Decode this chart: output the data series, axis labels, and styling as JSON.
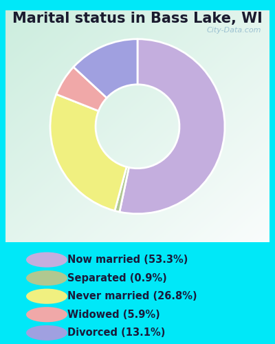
{
  "title": "Marital status in Bass Lake, WI",
  "slices": [
    {
      "label": "Now married (53.3%)",
      "value": 53.3,
      "color": "#c4aede"
    },
    {
      "label": "Separated (0.9%)",
      "value": 0.9,
      "color": "#b0c890"
    },
    {
      "label": "Never married (26.8%)",
      "value": 26.8,
      "color": "#f0f080"
    },
    {
      "label": "Widowed (5.9%)",
      "value": 5.9,
      "color": "#f0a8a8"
    },
    {
      "label": "Divorced (13.1%)",
      "value": 13.1,
      "color": "#a0a0e0"
    }
  ],
  "bg_outer": "#00e8f8",
  "watermark": "City-Data.com",
  "title_fontsize": 15,
  "legend_fontsize": 10.5,
  "donut_width": 0.52,
  "start_angle": 90,
  "chart_bg_colors": [
    "#c8e8d8",
    "#dff0e8",
    "#eaf6f0",
    "#f0f8f4"
  ],
  "title_color": "#1a1a2e"
}
